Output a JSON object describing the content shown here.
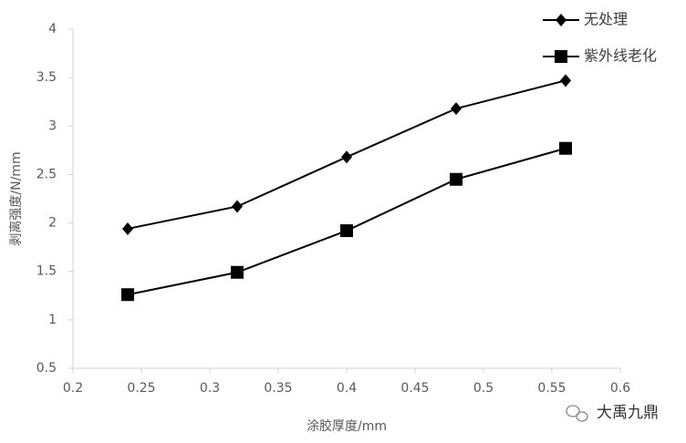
{
  "chart_data": {
    "type": "line",
    "x_label": "涂胶厚度/mm",
    "y_label": "剥离强度/N/mm",
    "x": [
      0.24,
      0.32,
      0.4,
      0.48,
      0.56
    ],
    "series": [
      {
        "name": "无处理",
        "color": "#000000",
        "marker": "diamond",
        "values": [
          1.94,
          2.17,
          2.68,
          3.18,
          3.47
        ]
      },
      {
        "name": "紫外线老化",
        "color": "#000000",
        "marker": "square",
        "values": [
          1.26,
          1.49,
          1.92,
          2.45,
          2.77
        ]
      }
    ],
    "xlim": [
      0.2,
      0.6
    ],
    "xticks": [
      0.2,
      0.25,
      0.3,
      0.35,
      0.4,
      0.45,
      0.5,
      0.55,
      0.6
    ],
    "ylim": [
      0.5,
      4
    ],
    "yticks": [
      0.5,
      1,
      1.5,
      2,
      2.5,
      3,
      3.5,
      4
    ],
    "grid": false,
    "legend": "upper right",
    "watermark": "大禹九鼎"
  }
}
